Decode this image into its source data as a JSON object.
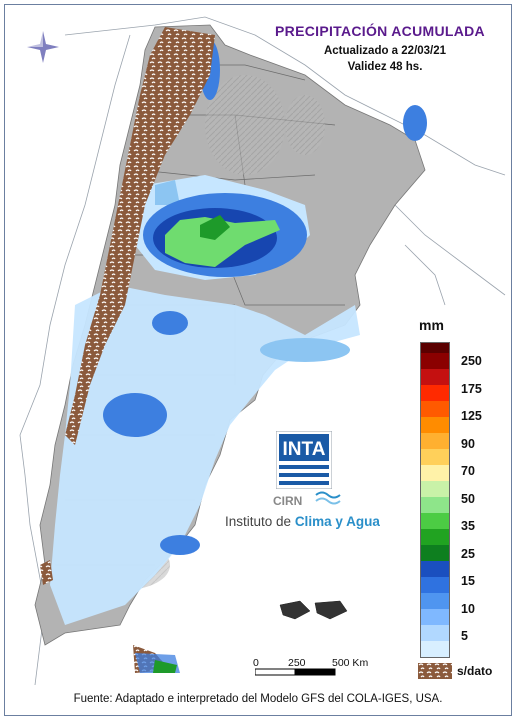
{
  "header": {
    "title": "PRECIPITACIÓN ACUMULADA",
    "updated": "Actualizado a 22/03/21",
    "validity": "Validez 48 hs."
  },
  "legend": {
    "unit": "mm",
    "colors": [
      "#ff1493",
      "#6b3d2a",
      "#5b0000",
      "#8b0000",
      "#c41010",
      "#ff2a00",
      "#ff5a00",
      "#ff8c00",
      "#ffb030",
      "#ffd05a",
      "#fff2a8",
      "#c9f2a8",
      "#8ee58a",
      "#4ccc44",
      "#21a321",
      "#0e7f1f",
      "#1a4fbf",
      "#2f72e0",
      "#4f95f0",
      "#7fb8ff",
      "#b1d8ff",
      "#d8efff"
    ],
    "labels": [
      "250",
      "175",
      "125",
      "90",
      "70",
      "50",
      "35",
      "25",
      "15",
      "10",
      "5"
    ],
    "nodata_label": "s/dato",
    "nodata_color": "#8b5a3c"
  },
  "scale": {
    "labels": [
      "0",
      "250",
      "500 Km"
    ]
  },
  "logo": {
    "inta": "INTA",
    "cirn": "CIRN",
    "institute_prefix": "Instituto de",
    "institute_highlight": "Clima y Agua"
  },
  "source": "Fuente: Adaptado e interpretado del Modelo GFS del COLA-IGES, USA.",
  "map_colors": {
    "terrain": "#a9a9a9",
    "terrain_light": "#c9c9c9",
    "sea": "#ffffff",
    "rain_light": "#c6e6ff",
    "rain_mid": "#8cc5f2",
    "rain_blue": "#3d7fe0",
    "rain_dark": "#1746b0",
    "rain_green": "#6fdc6f",
    "rain_green_dark": "#1e9a2a",
    "nodata": "#8b5a3c"
  }
}
